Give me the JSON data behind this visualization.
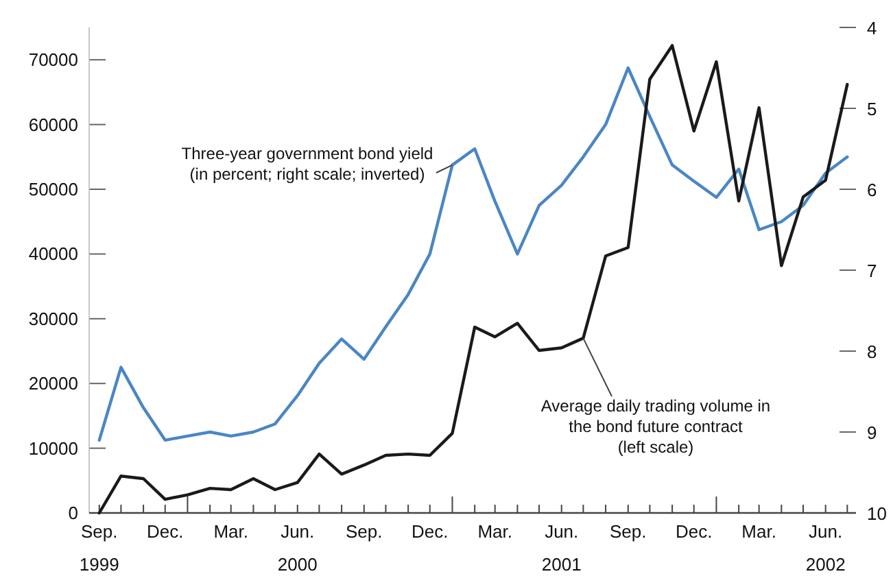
{
  "chart_data": {
    "type": "line",
    "x": [
      "1999-09",
      "1999-10",
      "1999-11",
      "1999-12",
      "2000-01",
      "2000-02",
      "2000-03",
      "2000-04",
      "2000-05",
      "2000-06",
      "2000-07",
      "2000-08",
      "2000-09",
      "2000-10",
      "2000-11",
      "2000-12",
      "2001-01",
      "2001-02",
      "2001-03",
      "2001-04",
      "2001-05",
      "2001-06",
      "2001-07",
      "2001-08",
      "2001-09",
      "2001-10",
      "2001-11",
      "2001-12",
      "2002-01",
      "2002-02",
      "2002-03",
      "2002-04",
      "2002-05",
      "2002-06",
      "2002-07"
    ],
    "series": [
      {
        "name": "Three-year government bond yield (in percent; right scale; inverted)",
        "color": "#4a86c5",
        "axis": "y2",
        "values": [
          9.1,
          8.2,
          8.7,
          9.1,
          9.05,
          9.0,
          9.05,
          9.0,
          8.9,
          8.55,
          8.15,
          7.85,
          8.1,
          7.7,
          7.3,
          6.8,
          5.7,
          5.5,
          6.15,
          6.8,
          6.2,
          5.95,
          5.6,
          5.2,
          4.5,
          5.1,
          5.7,
          5.9,
          6.1,
          5.75,
          6.5,
          6.4,
          6.2,
          5.8,
          5.6
        ]
      },
      {
        "name": "Average daily trading volume in the bond future contract (left scale)",
        "color": "#1a1a1a",
        "values": [
          0,
          5700,
          5300,
          2100,
          2800,
          3800,
          3600,
          5300,
          3600,
          4700,
          9100,
          6000,
          7400,
          8900,
          9100,
          8900,
          12300,
          28700,
          27200,
          29300,
          25100,
          25500,
          27000,
          39700,
          41000,
          67000,
          72200,
          59000,
          69700,
          48200,
          62600,
          38200,
          48800,
          51400,
          66200
        ]
      }
    ],
    "xlim": [
      "1999-08-18",
      "2002-07-13"
    ],
    "xticks": [
      {
        "value": "1999-09",
        "label": "Sep.\n1999"
      },
      {
        "value": "1999-10",
        "label": null
      },
      {
        "value": "1999-11",
        "label": null
      },
      {
        "value": "1999-12",
        "label": "Dec."
      },
      {
        "value": "2000-01",
        "label": null
      },
      {
        "value": "2000-02",
        "label": null
      },
      {
        "value": "2000-03",
        "label": "Mar."
      },
      {
        "value": "2000-04",
        "label": null
      },
      {
        "value": "2000-05",
        "label": null
      },
      {
        "value": "2000-06",
        "label": "Jun.\n2000"
      },
      {
        "value": "2000-07",
        "label": null
      },
      {
        "value": "2000-08",
        "label": null
      },
      {
        "value": "2000-09",
        "label": "Sep."
      },
      {
        "value": "2000-10",
        "label": null
      },
      {
        "value": "2000-11",
        "label": null
      },
      {
        "value": "2000-12",
        "label": "Dec."
      },
      {
        "value": "2001-01",
        "label": null
      },
      {
        "value": "2001-02",
        "label": null
      },
      {
        "value": "2001-03",
        "label": "Mar."
      },
      {
        "value": "2001-04",
        "label": null
      },
      {
        "value": "2001-05",
        "label": null
      },
      {
        "value": "2001-06",
        "label": "Jun.\n2001"
      },
      {
        "value": "2001-07",
        "label": null
      },
      {
        "value": "2001-08",
        "label": null
      },
      {
        "value": "2001-09",
        "label": "Sep."
      },
      {
        "value": "2001-10",
        "label": null
      },
      {
        "value": "2001-11",
        "label": null
      },
      {
        "value": "2001-12",
        "label": "Dec."
      },
      {
        "value": "2002-01",
        "label": null
      },
      {
        "value": "2002-02",
        "label": null
      },
      {
        "value": "2002-03",
        "label": "Mar."
      },
      {
        "value": "2002-04",
        "label": null
      },
      {
        "value": "2002-05",
        "label": null
      },
      {
        "value": "2002-06",
        "label": "Jun.\n2002"
      },
      {
        "value": "2002-07",
        "label": null
      }
    ],
    "ylim": [
      0,
      75000
    ],
    "yticks": [
      0,
      10000,
      20000,
      30000,
      40000,
      50000,
      60000,
      70000
    ],
    "y2lim": [
      10,
      4
    ],
    "y2ticks": [
      4,
      5,
      6,
      7,
      8,
      9,
      10
    ],
    "grid": false,
    "marker": "none",
    "line_style": "solid"
  }
}
